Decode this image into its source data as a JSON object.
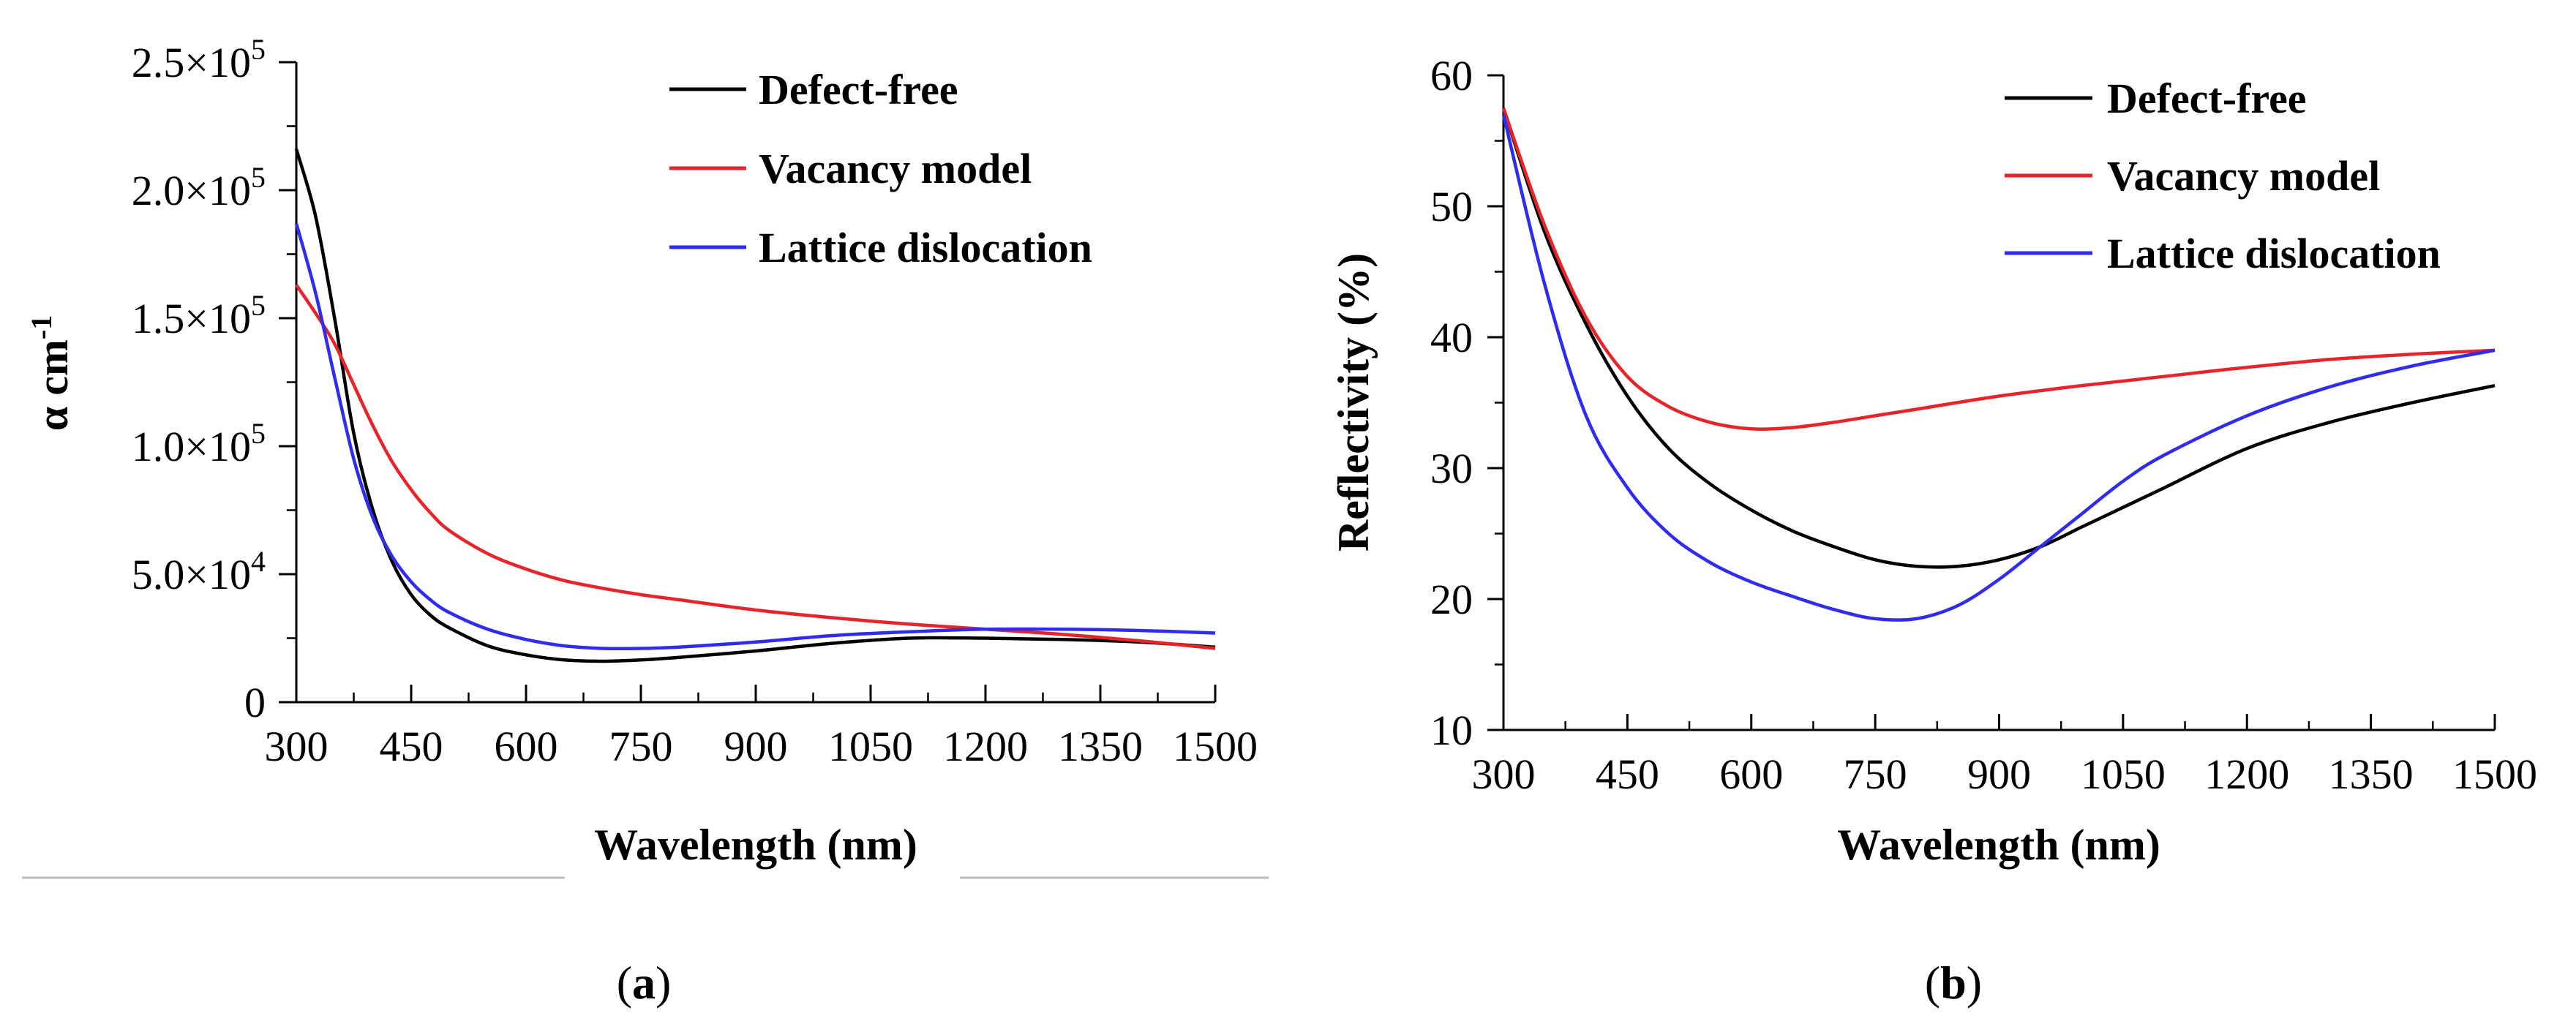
{
  "chart_data": [
    {
      "type": "line",
      "panel_label": "(a)",
      "panel_letter": "a",
      "xlabel": "Wavelength (nm)",
      "ylabel": "α cm",
      "ylabel_superscript": "-1",
      "xlim": [
        300,
        1500
      ],
      "ylim": [
        0,
        250000
      ],
      "xticks": [
        300,
        450,
        600,
        750,
        900,
        1050,
        1200,
        1350,
        1500
      ],
      "xtick_labels": [
        "300",
        "450",
        "600",
        "750",
        "900",
        "1050",
        "1200",
        "1350",
        "1500"
      ],
      "yticks": [
        {
          "value": 0,
          "mantissa": "0",
          "exponent": ""
        },
        {
          "value": 50000,
          "mantissa": "5.0×10",
          "exponent": "4"
        },
        {
          "value": 100000,
          "mantissa": "1.0×10",
          "exponent": "5"
        },
        {
          "value": 150000,
          "mantissa": "1.5×10",
          "exponent": "5"
        },
        {
          "value": 200000,
          "mantissa": "2.0×10",
          "exponent": "5"
        },
        {
          "value": 250000,
          "mantissa": "2.5×10",
          "exponent": "5"
        }
      ],
      "legend_position": "top-right",
      "series": [
        {
          "name": "Defect-free",
          "color": "#000000",
          "x": [
            300,
            325,
            350,
            375,
            400,
            425,
            450,
            475,
            500,
            550,
            600,
            650,
            700,
            750,
            800,
            900,
            1000,
            1100,
            1200,
            1300,
            1400,
            1500
          ],
          "y": [
            216000,
            190000,
            150000,
            105000,
            75000,
            55000,
            42000,
            34000,
            29000,
            22000,
            18500,
            16500,
            16000,
            16500,
            17500,
            20000,
            23000,
            25000,
            25000,
            24500,
            23500,
            21500
          ]
        },
        {
          "name": "Vacancy model",
          "color": "#e8232a",
          "x": [
            300,
            325,
            350,
            375,
            400,
            425,
            450,
            475,
            500,
            550,
            600,
            650,
            700,
            750,
            800,
            900,
            1000,
            1100,
            1200,
            1300,
            1400,
            1500
          ],
          "y": [
            163000,
            152000,
            140000,
            124000,
            108000,
            94000,
            83000,
            74000,
            67000,
            58000,
            52000,
            47500,
            44500,
            42000,
            40000,
            36000,
            33000,
            30500,
            28500,
            26500,
            24000,
            21000
          ]
        },
        {
          "name": "Lattice dislocation",
          "color": "#2f2bf0",
          "x": [
            300,
            325,
            350,
            375,
            400,
            425,
            450,
            475,
            500,
            550,
            600,
            650,
            700,
            750,
            800,
            900,
            1000,
            1100,
            1200,
            1300,
            1400,
            1500
          ],
          "y": [
            187000,
            160000,
            127000,
            95000,
            72000,
            57000,
            47000,
            40000,
            35000,
            28500,
            24500,
            22000,
            21000,
            21000,
            21500,
            23500,
            26000,
            27500,
            28500,
            28500,
            28000,
            27000
          ]
        }
      ]
    },
    {
      "type": "line",
      "panel_label": "(b)",
      "panel_letter": "b",
      "xlabel": "Wavelength (nm)",
      "ylabel": "Reflectivity (%)",
      "xlim": [
        300,
        1500
      ],
      "ylim": [
        10,
        60
      ],
      "xticks": [
        300,
        450,
        600,
        750,
        900,
        1050,
        1200,
        1350,
        1500
      ],
      "xtick_labels": [
        "300",
        "450",
        "600",
        "750",
        "900",
        "1050",
        "1200",
        "1350",
        "1500"
      ],
      "yticks": [
        10,
        20,
        30,
        40,
        50,
        60
      ],
      "ytick_labels": [
        "10",
        "20",
        "30",
        "40",
        "50",
        "60"
      ],
      "legend_position": "top-right",
      "series": [
        {
          "name": "Defect-free",
          "color": "#000000",
          "x": [
            300,
            350,
            400,
            450,
            500,
            550,
            600,
            650,
            700,
            750,
            800,
            850,
            900,
            950,
            1000,
            1050,
            1100,
            1200,
            1300,
            1400,
            1500
          ],
          "y": [
            57.5,
            48,
            41,
            35.5,
            31.5,
            28.8,
            26.8,
            25.2,
            24,
            23,
            22.5,
            22.5,
            23,
            24,
            25.5,
            27,
            28.5,
            31.5,
            33.5,
            35,
            36.3
          ]
        },
        {
          "name": "Vacancy model",
          "color": "#e8232a",
          "x": [
            300,
            350,
            400,
            450,
            500,
            550,
            600,
            650,
            700,
            750,
            800,
            900,
            1000,
            1100,
            1200,
            1300,
            1400,
            1500
          ],
          "y": [
            57.5,
            48.5,
            41.5,
            37,
            34.7,
            33.5,
            33,
            33.1,
            33.5,
            34,
            34.5,
            35.5,
            36.3,
            37,
            37.7,
            38.3,
            38.7,
            39
          ]
        },
        {
          "name": "Lattice dislocation",
          "color": "#2f2bf0",
          "x": [
            300,
            350,
            400,
            450,
            500,
            550,
            600,
            650,
            700,
            750,
            800,
            850,
            900,
            950,
            1000,
            1050,
            1100,
            1200,
            1300,
            1400,
            1500
          ],
          "y": [
            57,
            44,
            34,
            28.5,
            25,
            22.8,
            21.3,
            20.2,
            19.2,
            18.5,
            18.5,
            19.5,
            21.5,
            24,
            26.5,
            29,
            31,
            34,
            36.2,
            37.8,
            39
          ]
        }
      ]
    }
  ]
}
